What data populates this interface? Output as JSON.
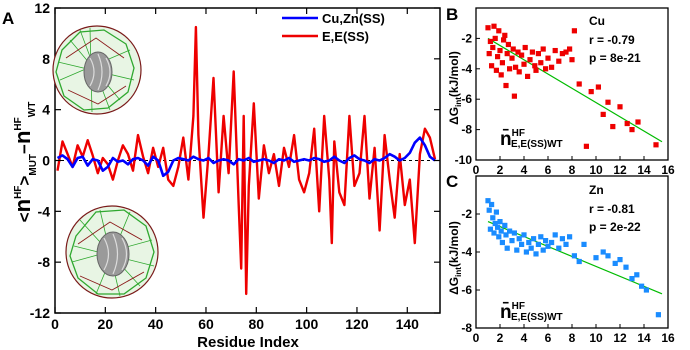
{
  "chart_data": [
    {
      "panel": "A",
      "type": "line",
      "xlabel": "Residue Index",
      "ylabel": "<n̄HF>MUT − n̄HF WT",
      "ylabel_parts": {
        "bracket_open": "<",
        "n": "n",
        "sup1": "HF",
        "sub1": "MUT",
        "gt": ">",
        "minus": "−",
        "sup2": "HF",
        "sub2": "WT"
      },
      "xlim": [
        0,
        153
      ],
      "ylim": [
        -12,
        12
      ],
      "xticks": [
        "0",
        "20",
        "40",
        "60",
        "80",
        "100",
        "120",
        "140"
      ],
      "yticks": [
        "-12",
        "-8",
        "-4",
        "0",
        "4",
        "8",
        "12"
      ],
      "legend": "top-right",
      "series": [
        {
          "name": "Cu,Zn(SS)",
          "color": "#0000ff",
          "x": [
            1,
            3,
            5,
            7,
            9,
            11,
            13,
            15,
            17,
            19,
            21,
            23,
            25,
            27,
            29,
            31,
            33,
            35,
            37,
            39,
            41,
            43,
            45,
            47,
            49,
            51,
            53,
            55,
            57,
            59,
            61,
            63,
            65,
            67,
            69,
            71,
            73,
            75,
            77,
            79,
            81,
            83,
            85,
            87,
            89,
            91,
            93,
            95,
            97,
            99,
            101,
            103,
            105,
            107,
            109,
            111,
            113,
            115,
            117,
            119,
            121,
            123,
            125,
            127,
            129,
            131,
            133,
            135,
            137,
            139,
            141,
            143,
            145,
            147,
            149,
            151
          ],
          "values": [
            0.2,
            0.4,
            0.1,
            -0.5,
            0.2,
            0.3,
            -0.4,
            0.1,
            0.0,
            -0.8,
            -0.5,
            0.2,
            -0.1,
            0.0,
            -0.3,
            0.1,
            0.2,
            0.0,
            -0.4,
            0.3,
            0.0,
            -1.2,
            -0.9,
            0.0,
            0.2,
            0.1,
            0.0,
            0.3,
            0.1,
            0.0,
            0.2,
            -0.2,
            0.0,
            0.1,
            0.0,
            -0.3,
            0.1,
            0.0,
            0.2,
            -0.1,
            0.0,
            0.1,
            0.0,
            -0.2,
            0.1,
            0.0,
            0.2,
            -0.1,
            0.0,
            0.1,
            0.0,
            0.2,
            0.1,
            -0.1,
            0.0,
            0.3,
            0.0,
            -0.2,
            0.2,
            0.4,
            0.1,
            0.0,
            -0.2,
            0.1,
            0.0,
            0.2,
            0.5,
            0.3,
            0.0,
            0.2,
            0.6,
            1.4,
            1.8,
            1.2,
            0.3,
            0.0
          ]
        },
        {
          "name": "E,E(SS)",
          "color": "#ee0000",
          "x": [
            1,
            3,
            5,
            7,
            9,
            11,
            13,
            15,
            17,
            19,
            21,
            23,
            25,
            27,
            29,
            31,
            33,
            35,
            37,
            39,
            41,
            43,
            45,
            47,
            49,
            51,
            53,
            55,
            56,
            57,
            59,
            61,
            63,
            65,
            67,
            69,
            71,
            73,
            74,
            75,
            76,
            77,
            79,
            81,
            83,
            85,
            87,
            89,
            91,
            93,
            95,
            97,
            99,
            101,
            103,
            105,
            107,
            109,
            110,
            111,
            113,
            115,
            117,
            119,
            121,
            123,
            125,
            127,
            129,
            131,
            133,
            135,
            137,
            139,
            141,
            143,
            145,
            147,
            149,
            151
          ],
          "values": [
            -0.8,
            1.5,
            0.5,
            -0.5,
            1.2,
            0.3,
            1.6,
            0.4,
            -1.0,
            0.2,
            -0.3,
            -1.5,
            0.0,
            1.2,
            0.5,
            -0.8,
            2.0,
            0.3,
            -1.0,
            1.0,
            -0.5,
            1.0,
            -1.5,
            -2.0,
            -0.5,
            1.8,
            -1.5,
            3.5,
            10.5,
            2.0,
            -4.5,
            0.5,
            6.5,
            -2.5,
            3.5,
            -1.0,
            7.0,
            -3.5,
            -8.5,
            3.5,
            -10.5,
            -2.0,
            4.5,
            -3.0,
            1.2,
            -1.0,
            0.5,
            -2.0,
            1.0,
            -0.5,
            2.0,
            -1.5,
            -2.5,
            -1.0,
            2.5,
            -4.0,
            3.5,
            -1.5,
            -6.5,
            1.5,
            -2.5,
            -3.5,
            3.5,
            -2.0,
            -1.0,
            3.5,
            -3.0,
            1.0,
            -5.5,
            2.0,
            -1.5,
            -4.5,
            0.5,
            -3.5,
            -1.5,
            -6.5,
            0.5,
            2.5,
            1.8,
            0.1
          ]
        }
      ]
    },
    {
      "panel": "B",
      "type": "scatter",
      "label": "Cu",
      "stats": [
        "r = -0.79",
        "p = 8e-21"
      ],
      "xlabel_main": "n̄",
      "xlabel_sup": "HF",
      "xlabel_sub": "E,E(SS)WT",
      "ylabel": "ΔGint(kJ/mol)",
      "ylabel_main": "ΔG",
      "ylabel_sub": "int",
      "ylabel_tail": "(kJ/mol)",
      "xlim": [
        0,
        16
      ],
      "ylim": [
        -10,
        0
      ],
      "xticks": [
        "0",
        "2",
        "4",
        "6",
        "8",
        "10",
        "12",
        "14",
        "16"
      ],
      "yticks": [
        "-2",
        "-4",
        "-6",
        "-8",
        "-10"
      ],
      "color": "#ee0000",
      "fit": {
        "x": [
          1,
          15.5
        ],
        "y": [
          -2.0,
          -8.8
        ],
        "color": "#00bb00"
      },
      "points": [
        [
          1.0,
          -1.3
        ],
        [
          1.2,
          -2.2
        ],
        [
          1.1,
          -3.0
        ],
        [
          1.3,
          -3.8
        ],
        [
          1.4,
          -2.6
        ],
        [
          1.5,
          -1.2
        ],
        [
          1.6,
          -2.0
        ],
        [
          1.7,
          -4.1
        ],
        [
          1.8,
          -3.2
        ],
        [
          1.9,
          -1.5
        ],
        [
          2.0,
          -2.8
        ],
        [
          2.1,
          -4.4
        ],
        [
          2.2,
          -3.6
        ],
        [
          2.3,
          -2.1
        ],
        [
          2.4,
          -1.8
        ],
        [
          2.5,
          -5.1
        ],
        [
          2.6,
          -3.0
        ],
        [
          2.7,
          -2.4
        ],
        [
          2.8,
          -4.0
        ],
        [
          3.0,
          -3.3
        ],
        [
          3.1,
          -2.7
        ],
        [
          3.2,
          -5.8
        ],
        [
          3.3,
          -3.9
        ],
        [
          3.5,
          -2.9
        ],
        [
          3.6,
          -4.2
        ],
        [
          3.8,
          -3.1
        ],
        [
          4.0,
          -3.7
        ],
        [
          4.1,
          -2.6
        ],
        [
          4.3,
          -4.5
        ],
        [
          4.5,
          -3.4
        ],
        [
          4.7,
          -2.9
        ],
        [
          4.9,
          -3.8
        ],
        [
          5.0,
          -4.1
        ],
        [
          5.2,
          -3.0
        ],
        [
          5.4,
          -3.6
        ],
        [
          5.6,
          -2.7
        ],
        [
          5.8,
          -4.0
        ],
        [
          6.0,
          -3.3
        ],
        [
          6.3,
          -3.9
        ],
        [
          6.6,
          -2.8
        ],
        [
          6.9,
          -3.5
        ],
        [
          7.2,
          -3.0
        ],
        [
          7.5,
          -2.9
        ],
        [
          7.8,
          -2.7
        ],
        [
          8.0,
          -3.4
        ],
        [
          8.2,
          -1.5
        ],
        [
          8.6,
          -5.0
        ],
        [
          9.2,
          -9.1
        ],
        [
          9.6,
          -5.5
        ],
        [
          10.2,
          -5.2
        ],
        [
          10.6,
          -7.0
        ],
        [
          11.0,
          -6.2
        ],
        [
          11.4,
          -7.8
        ],
        [
          12.0,
          -6.5
        ],
        [
          12.6,
          -7.6
        ],
        [
          13.0,
          -8.0
        ],
        [
          13.5,
          -7.5
        ],
        [
          15.0,
          -9.0
        ]
      ]
    },
    {
      "panel": "C",
      "type": "scatter",
      "label": "Zn",
      "stats": [
        "r = -0.81",
        "p = 2e-22"
      ],
      "xlabel_main": "n̄",
      "xlabel_sup": "HF",
      "xlabel_sub": "E,E(SS)WT",
      "ylabel": "ΔGint(kJ/mol)",
      "ylabel_main": "ΔG",
      "ylabel_sub": "int",
      "ylabel_tail": "(kJ/mol)",
      "xlim": [
        0,
        16
      ],
      "ylim": [
        -8,
        0
      ],
      "xticks": [
        "0",
        "2",
        "4",
        "6",
        "8",
        "10",
        "12",
        "14",
        "16"
      ],
      "yticks": [
        "-2",
        "-4",
        "-6",
        "-8"
      ],
      "color": "#1a8cff",
      "fit": {
        "x": [
          1,
          15.5
        ],
        "y": [
          -2.4,
          -6.2
        ],
        "color": "#00bb00"
      },
      "points": [
        [
          1.0,
          -1.3
        ],
        [
          1.1,
          -1.8
        ],
        [
          1.2,
          -2.8
        ],
        [
          1.3,
          -1.5
        ],
        [
          1.4,
          -2.2
        ],
        [
          1.5,
          -3.0
        ],
        [
          1.6,
          -2.5
        ],
        [
          1.7,
          -1.9
        ],
        [
          1.8,
          -2.7
        ],
        [
          1.9,
          -3.2
        ],
        [
          2.0,
          -2.4
        ],
        [
          2.1,
          -2.9
        ],
        [
          2.2,
          -3.5
        ],
        [
          2.4,
          -2.6
        ],
        [
          2.5,
          -3.1
        ],
        [
          2.6,
          -3.8
        ],
        [
          2.8,
          -2.9
        ],
        [
          3.0,
          -3.4
        ],
        [
          3.2,
          -3.0
        ],
        [
          3.4,
          -3.9
        ],
        [
          3.6,
          -3.3
        ],
        [
          3.8,
          -3.6
        ],
        [
          4.0,
          -3.1
        ],
        [
          4.2,
          -4.0
        ],
        [
          4.4,
          -3.5
        ],
        [
          4.6,
          -3.8
        ],
        [
          4.8,
          -3.3
        ],
        [
          5.0,
          -4.1
        ],
        [
          5.2,
          -3.6
        ],
        [
          5.4,
          -3.2
        ],
        [
          5.6,
          -3.9
        ],
        [
          5.8,
          -3.4
        ],
        [
          6.0,
          -3.7
        ],
        [
          6.3,
          -3.5
        ],
        [
          6.6,
          -3.1
        ],
        [
          6.9,
          -3.8
        ],
        [
          7.2,
          -3.3
        ],
        [
          7.5,
          -3.6
        ],
        [
          7.8,
          -3.2
        ],
        [
          8.2,
          -4.2
        ],
        [
          8.6,
          -4.5
        ],
        [
          9.0,
          -3.6
        ],
        [
          10.0,
          -4.3
        ],
        [
          10.6,
          -4.0
        ],
        [
          11.0,
          -4.2
        ],
        [
          11.6,
          -4.6
        ],
        [
          12.0,
          -4.4
        ],
        [
          12.5,
          -4.8
        ],
        [
          13.0,
          -5.4
        ],
        [
          13.4,
          -5.2
        ],
        [
          13.8,
          -5.8
        ],
        [
          14.2,
          -6.0
        ],
        [
          15.2,
          -7.3
        ]
      ]
    }
  ],
  "panel_letters": {
    "a": "A",
    "b": "B",
    "c": "C"
  }
}
